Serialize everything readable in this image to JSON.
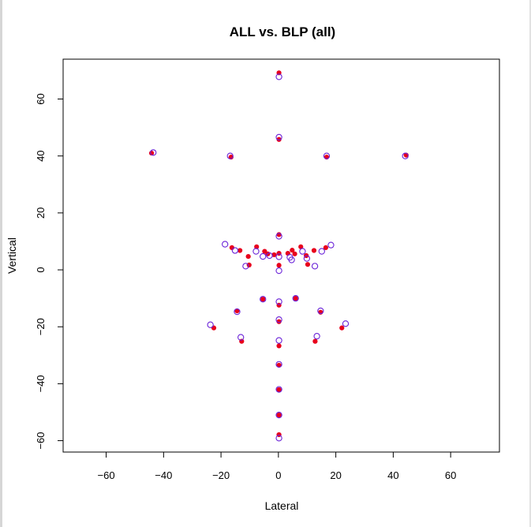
{
  "chart_data": {
    "type": "scatter",
    "title": "ALL vs. BLP (all)",
    "xlabel": "Lateral",
    "ylabel": "Vertical",
    "xlim": [
      -75,
      77
    ],
    "ylim": [
      -64,
      74
    ],
    "xticks": [
      -60,
      -40,
      -20,
      0,
      20,
      40,
      60
    ],
    "yticks": [
      -60,
      -40,
      -20,
      0,
      20,
      40,
      60
    ],
    "xtick_labels": [
      "−60",
      "−40",
      "−20",
      "0",
      "20",
      "40",
      "60"
    ],
    "ytick_labels": [
      "−60",
      "−40",
      "−20",
      "0",
      "20",
      "40",
      "60"
    ],
    "grid": false,
    "legend": "none",
    "series": [
      {
        "marker": "filled-circle",
        "color": "#e8001c",
        "points": [
          [
            0.2,
            69.2
          ],
          [
            0.2,
            45.8
          ],
          [
            -44.2,
            41.0
          ],
          [
            -16.5,
            39.6
          ],
          [
            16.8,
            39.6
          ],
          [
            44.5,
            40.3
          ],
          [
            0.2,
            12.4
          ],
          [
            -16.2,
            7.8
          ],
          [
            -13.4,
            6.8
          ],
          [
            -7.6,
            8.1
          ],
          [
            -4.8,
            6.5
          ],
          [
            -3.7,
            5.6
          ],
          [
            -1.5,
            5.3
          ],
          [
            -10.5,
            4.7
          ],
          [
            -10.2,
            1.7
          ],
          [
            0.2,
            5.8
          ],
          [
            3.3,
            5.8
          ],
          [
            4.8,
            6.9
          ],
          [
            5.7,
            5.6
          ],
          [
            7.8,
            8.1
          ],
          [
            9.7,
            5.0
          ],
          [
            12.4,
            6.8
          ],
          [
            16.5,
            7.8
          ],
          [
            10.2,
            1.9
          ],
          [
            0.2,
            1.6
          ],
          [
            -5.4,
            -10.3
          ],
          [
            6.0,
            -10.0
          ],
          [
            0.2,
            -12.4
          ],
          [
            -14.4,
            -14.4
          ],
          [
            14.7,
            -14.9
          ],
          [
            -22.5,
            -20.4
          ],
          [
            22.1,
            -20.4
          ],
          [
            0.2,
            -18.2
          ],
          [
            -12.8,
            -25.1
          ],
          [
            12.8,
            -25.1
          ],
          [
            0.2,
            -26.7
          ],
          [
            0.2,
            -33.5
          ],
          [
            0.2,
            -42.1
          ],
          [
            0.2,
            -51.0
          ],
          [
            0.2,
            -57.9
          ]
        ]
      },
      {
        "marker": "open-circle",
        "color": "#6a22d8",
        "points": [
          [
            0.2,
            67.8
          ],
          [
            0.2,
            46.6
          ],
          [
            -43.6,
            41.2
          ],
          [
            -16.8,
            40.0
          ],
          [
            16.8,
            40.0
          ],
          [
            44.2,
            40.0
          ],
          [
            0.2,
            11.8
          ],
          [
            -18.6,
            9.0
          ],
          [
            -15.1,
            6.8
          ],
          [
            -7.8,
            6.5
          ],
          [
            -5.4,
            4.7
          ],
          [
            -3.1,
            5.0
          ],
          [
            -11.4,
            1.3
          ],
          [
            0.2,
            4.6
          ],
          [
            4.0,
            4.4
          ],
          [
            4.6,
            3.5
          ],
          [
            8.4,
            6.5
          ],
          [
            9.9,
            4.0
          ],
          [
            12.7,
            1.3
          ],
          [
            15.1,
            6.5
          ],
          [
            18.3,
            8.7
          ],
          [
            0.2,
            -0.3
          ],
          [
            -5.4,
            -10.3
          ],
          [
            6.0,
            -10.0
          ],
          [
            0.2,
            -11.2
          ],
          [
            -14.4,
            -14.7
          ],
          [
            14.7,
            -14.4
          ],
          [
            -23.7,
            -19.3
          ],
          [
            23.4,
            -18.9
          ],
          [
            0.2,
            -17.5
          ],
          [
            -13.1,
            -23.7
          ],
          [
            13.4,
            -23.3
          ],
          [
            0.2,
            -24.8
          ],
          [
            0.2,
            -33.2
          ],
          [
            0.2,
            -42.0
          ],
          [
            0.2,
            -51.0
          ],
          [
            0.2,
            -59.1
          ]
        ]
      }
    ]
  }
}
